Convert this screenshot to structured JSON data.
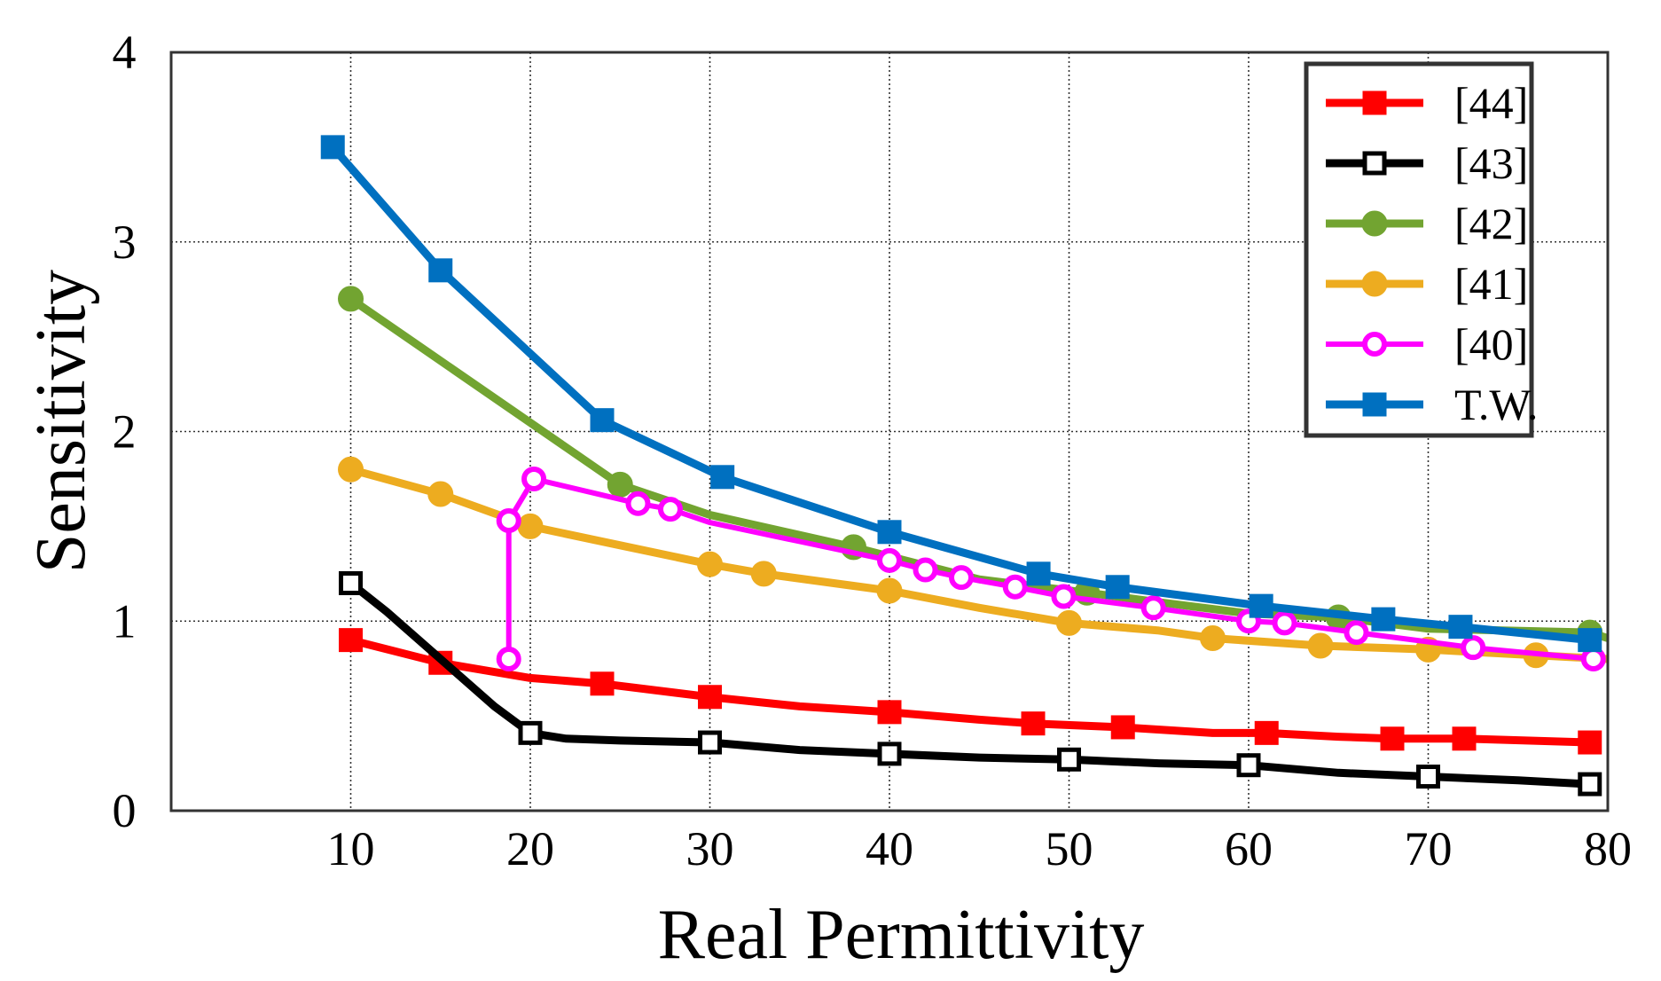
{
  "chart_data": {
    "type": "line",
    "xlabel": "Real Permittivity",
    "ylabel": "Sensitivity",
    "xlim": [
      0,
      80
    ],
    "ylim": [
      0,
      4
    ],
    "xticks": [
      10,
      20,
      30,
      40,
      50,
      60,
      70,
      80
    ],
    "yticks": [
      0,
      1,
      2,
      3,
      4
    ],
    "grid": true,
    "legend_position": "top-right",
    "series": [
      {
        "name": "[44]",
        "color": "#ff0000",
        "marker": "square-filled",
        "points": [
          [
            10,
            0.9
          ],
          [
            15,
            0.78
          ],
          [
            20,
            0.7
          ],
          [
            24,
            0.67
          ],
          [
            30,
            0.6
          ],
          [
            35,
            0.55
          ],
          [
            40,
            0.52
          ],
          [
            45,
            0.48
          ],
          [
            48,
            0.46
          ],
          [
            53,
            0.44
          ],
          [
            58,
            0.41
          ],
          [
            61,
            0.41
          ],
          [
            65,
            0.39
          ],
          [
            68,
            0.38
          ],
          [
            72,
            0.38
          ],
          [
            79,
            0.36
          ]
        ],
        "markers_x": [
          10,
          15,
          24,
          30,
          40,
          48,
          53,
          61,
          68,
          72,
          79
        ]
      },
      {
        "name": "[43]",
        "color": "#000000",
        "marker": "square-open",
        "points": [
          [
            10,
            1.2
          ],
          [
            12,
            1.05
          ],
          [
            15,
            0.8
          ],
          [
            18,
            0.55
          ],
          [
            20,
            0.41
          ],
          [
            22,
            0.38
          ],
          [
            25,
            0.37
          ],
          [
            30,
            0.36
          ],
          [
            35,
            0.32
          ],
          [
            40,
            0.3
          ],
          [
            45,
            0.28
          ],
          [
            50,
            0.27
          ],
          [
            55,
            0.25
          ],
          [
            60,
            0.24
          ],
          [
            65,
            0.2
          ],
          [
            70,
            0.18
          ],
          [
            75,
            0.16
          ],
          [
            79,
            0.14
          ]
        ],
        "markers_x": [
          10,
          20,
          30,
          40,
          50,
          60,
          70,
          79
        ]
      },
      {
        "name": "[42]",
        "color": "#72a431",
        "marker": "circle-filled",
        "points": [
          [
            10,
            2.7
          ],
          [
            25,
            1.72
          ],
          [
            30,
            1.56
          ],
          [
            38,
            1.39
          ],
          [
            45,
            1.22
          ],
          [
            51,
            1.15
          ],
          [
            55,
            1.1
          ],
          [
            60,
            1.04
          ],
          [
            65,
            1.02
          ],
          [
            70,
            0.96
          ],
          [
            79,
            0.94
          ],
          [
            80,
            0.91
          ]
        ],
        "markers_x": [
          10,
          25,
          38,
          51,
          65,
          79
        ]
      },
      {
        "name": "[41]",
        "color": "#edac20",
        "marker": "circle-filled",
        "points": [
          [
            10,
            1.8
          ],
          [
            15,
            1.67
          ],
          [
            20,
            1.5
          ],
          [
            25,
            1.4
          ],
          [
            30,
            1.3
          ],
          [
            33,
            1.25
          ],
          [
            40,
            1.16
          ],
          [
            45,
            1.07
          ],
          [
            50,
            0.99
          ],
          [
            55,
            0.95
          ],
          [
            58,
            0.91
          ],
          [
            64,
            0.87
          ],
          [
            70,
            0.85
          ],
          [
            76,
            0.82
          ],
          [
            80,
            0.8
          ]
        ],
        "markers_x": [
          10,
          15,
          20,
          30,
          33,
          40,
          50,
          58,
          64,
          70,
          76
        ]
      },
      {
        "name": "[40]",
        "color": "#ff00ff",
        "marker": "circle-open",
        "points": [
          [
            18.8,
            0.8
          ],
          [
            18.8,
            1.53
          ],
          [
            20.2,
            1.75
          ],
          [
            26,
            1.62
          ],
          [
            27.8,
            1.59
          ],
          [
            30,
            1.52
          ],
          [
            35,
            1.42
          ],
          [
            40,
            1.32
          ],
          [
            42,
            1.27
          ],
          [
            44,
            1.23
          ],
          [
            47,
            1.18
          ],
          [
            49.7,
            1.13
          ],
          [
            54.7,
            1.07
          ],
          [
            60,
            1.0
          ],
          [
            62,
            0.99
          ],
          [
            66,
            0.94
          ],
          [
            72.5,
            0.86
          ],
          [
            79.2,
            0.8
          ]
        ],
        "markers_x": [
          18.8,
          18.8,
          20.2,
          26,
          27.8,
          40,
          42,
          44,
          47,
          49.7,
          54.7,
          60,
          62,
          66,
          72.5,
          79.2
        ]
      },
      {
        "name": "T.W.",
        "color": "#0070c0",
        "marker": "square-filled",
        "points": [
          [
            9,
            3.5
          ],
          [
            15,
            2.85
          ],
          [
            24,
            2.06
          ],
          [
            30.7,
            1.76
          ],
          [
            40,
            1.47
          ],
          [
            48.3,
            1.25
          ],
          [
            52.7,
            1.18
          ],
          [
            60.7,
            1.08
          ],
          [
            67.5,
            1.01
          ],
          [
            71.8,
            0.97
          ],
          [
            79,
            0.9
          ]
        ],
        "markers_x": [
          9,
          15,
          24,
          30.7,
          40,
          48.3,
          52.7,
          60.7,
          67.5,
          71.8,
          79
        ]
      }
    ]
  }
}
